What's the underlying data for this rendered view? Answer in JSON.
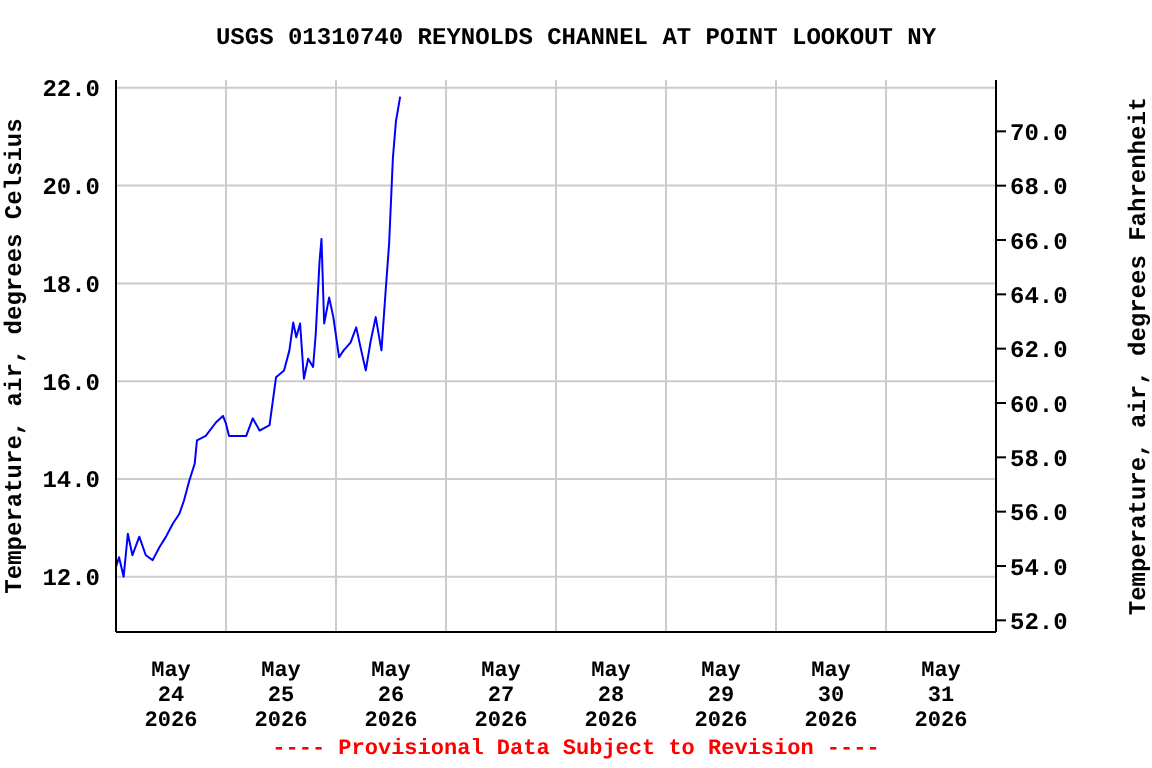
{
  "chart_data": {
    "type": "line",
    "title": "USGS 01310740 REYNOLDS CHANNEL AT POINT LOOKOUT NY",
    "ylabel": "Temperature, air, degrees Celsius",
    "y2label": "Temperature, air, degrees Fahrenheit",
    "annotations": [
      "---- Provisional Data Subject to Revision ----"
    ],
    "x": [
      "2026-05-24T00:00",
      "2026-05-24T00:40",
      "2026-05-24T01:40",
      "2026-05-24T02:35",
      "2026-05-24T03:35",
      "2026-05-24T05:05",
      "2026-05-24T06:30",
      "2026-05-24T08:00",
      "2026-05-24T09:30",
      "2026-05-24T10:55",
      "2026-05-24T12:25",
      "2026-05-24T13:50",
      "2026-05-24T14:50",
      "2026-05-24T16:00",
      "2026-05-24T17:10",
      "2026-05-24T17:40",
      "2026-05-24T19:35",
      "2026-05-24T21:50",
      "2026-05-24T23:20",
      "2026-05-25T00:00",
      "2026-05-25T00:40",
      "2026-05-25T04:25",
      "2026-05-25T05:50",
      "2026-05-25T07:20",
      "2026-05-25T09:30",
      "2026-05-25T10:10",
      "2026-05-25T10:55",
      "2026-05-25T12:40",
      "2026-05-25T13:50",
      "2026-05-25T14:40",
      "2026-05-25T15:20",
      "2026-05-25T16:10",
      "2026-05-25T17:00",
      "2026-05-25T17:55",
      "2026-05-25T19:00",
      "2026-05-25T19:35",
      "2026-05-25T20:25",
      "2026-05-25T20:50",
      "2026-05-25T21:25",
      "2026-05-25T22:30",
      "2026-05-25T23:25",
      "2026-05-26T00:40",
      "2026-05-26T01:40",
      "2026-05-26T03:10",
      "2026-05-26T04:25",
      "2026-05-26T05:30",
      "2026-05-26T06:30",
      "2026-05-26T07:35",
      "2026-05-26T08:40",
      "2026-05-26T09:55",
      "2026-05-26T10:50",
      "2026-05-26T11:35",
      "2026-05-26T12:25",
      "2026-05-26T13:05",
      "2026-05-26T14:00"
    ],
    "series": [
      {
        "color": "#0000ff",
        "values": [
          12.2,
          12.4,
          12.0,
          12.88,
          12.44,
          12.82,
          12.44,
          12.34,
          12.61,
          12.82,
          13.09,
          13.29,
          13.56,
          13.97,
          14.31,
          14.79,
          14.88,
          15.16,
          15.29,
          15.13,
          14.88,
          14.88,
          15.24,
          14.99,
          15.1,
          15.56,
          16.08,
          16.22,
          16.63,
          17.2,
          16.9,
          17.18,
          16.05,
          16.46,
          16.29,
          16.97,
          18.46,
          18.91,
          17.18,
          17.71,
          17.31,
          16.49,
          16.63,
          16.79,
          17.1,
          16.63,
          16.22,
          16.83,
          17.31,
          16.63,
          17.85,
          18.8,
          20.57,
          21.32,
          21.82
        ]
      }
    ],
    "xlim": [
      "2026-05-24T00:00",
      "2026-06-01T00:00"
    ],
    "xticks": [
      {
        "value": "2026-05-24T00:00",
        "label": null
      },
      {
        "value": "2026-05-24T12:00",
        "label": "May\n24\n2026"
      },
      {
        "value": "2026-05-25T00:00",
        "label": null
      },
      {
        "value": "2026-05-25T12:00",
        "label": "May\n25\n2026"
      },
      {
        "value": "2026-05-26T00:00",
        "label": null
      },
      {
        "value": "2026-05-26T12:00",
        "label": "May\n26\n2026"
      },
      {
        "value": "2026-05-27T00:00",
        "label": null
      },
      {
        "value": "2026-05-27T12:00",
        "label": "May\n27\n2026"
      },
      {
        "value": "2026-05-28T00:00",
        "label": null
      },
      {
        "value": "2026-05-28T12:00",
        "label": "May\n28\n2026"
      },
      {
        "value": "2026-05-29T00:00",
        "label": null
      },
      {
        "value": "2026-05-29T12:00",
        "label": "May\n29\n2026"
      },
      {
        "value": "2026-05-30T00:00",
        "label": null
      },
      {
        "value": "2026-05-30T12:00",
        "label": "May\n30\n2026"
      },
      {
        "value": "2026-05-31T00:00",
        "label": null
      },
      {
        "value": "2026-05-31T12:00",
        "label": "May\n31\n2026"
      },
      {
        "value": "2026-06-01T00:00",
        "label": null
      }
    ],
    "ylim": [
      10.87,
      22.16
    ],
    "yticks": [
      {
        "value": 12,
        "label": "12.0"
      },
      {
        "value": 14,
        "label": "14.0"
      },
      {
        "value": 16,
        "label": "16.0"
      },
      {
        "value": 18,
        "label": "18.0"
      },
      {
        "value": 20,
        "label": "20.0"
      },
      {
        "value": 22,
        "label": "22.0"
      }
    ],
    "y2lim": [
      51.57,
      71.89
    ],
    "y2ticks": [
      {
        "value": 52,
        "label": "52.0"
      },
      {
        "value": 54,
        "label": "54.0"
      },
      {
        "value": 56,
        "label": "56.0"
      },
      {
        "value": 58,
        "label": "58.0"
      },
      {
        "value": 60,
        "label": "60.0"
      },
      {
        "value": 62,
        "label": "62.0"
      },
      {
        "value": 64,
        "label": "64.0"
      },
      {
        "value": 66,
        "label": "66.0"
      },
      {
        "value": 68,
        "label": "68.0"
      },
      {
        "value": 70,
        "label": "70.0"
      }
    ],
    "grid": true,
    "marker": "none",
    "line_style": "solid"
  }
}
